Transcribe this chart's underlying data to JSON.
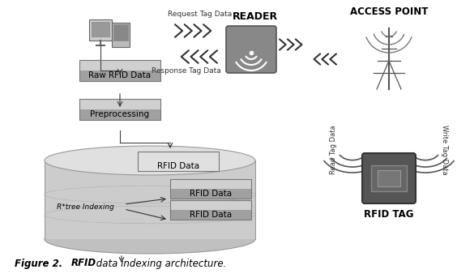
{
  "bg_color": "#ffffff",
  "box_fill_dark": "#a0a0a0",
  "box_fill_light": "#c8c8c8",
  "box_edge": "#666666",
  "cylinder_fill": "#cccccc",
  "cylinder_top_fill": "#e0e0e0",
  "cylinder_edge": "#999999",
  "reader_label": "READER",
  "access_point_label": "ACCESS POINT",
  "rfid_tag_label": "RFID TAG",
  "request_label": "Request Tag Data",
  "response_label": "Response Tag Data",
  "read_tag_label": "Read Tag Data",
  "write_tag_label": "Write Tag Data",
  "rtree_label": "R*tree Indexing",
  "raw_rfid_label": "Raw RFID Data",
  "preprocessing_label": "Preprocessing",
  "rfid_data_label": "RFID Data",
  "caption_bold": "Figure 2. ",
  "caption_italic_bold": "RFID",
  "caption_rest": " data indexing architecture."
}
